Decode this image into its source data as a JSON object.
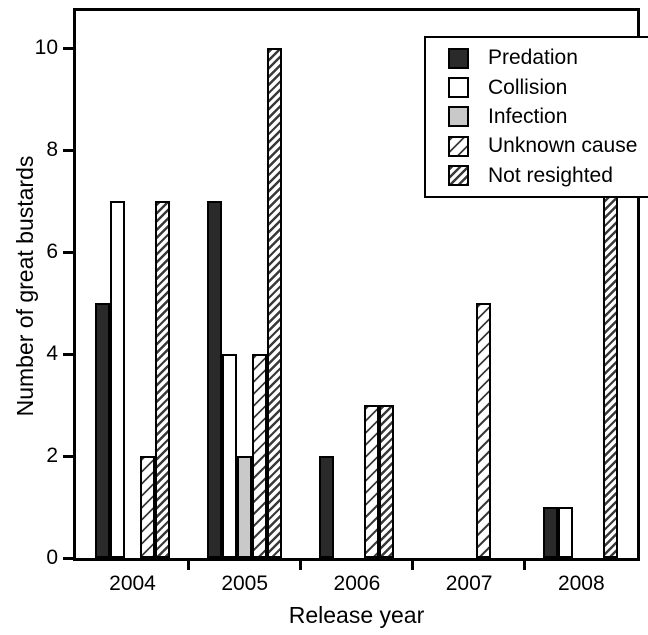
{
  "figure": {
    "background": "#ffffff",
    "frame_color": "#000000",
    "y_axis": {
      "label": "Number of great bustards",
      "tick_values": [
        0,
        2,
        4,
        6,
        8,
        10
      ]
    },
    "x_axis": {
      "label": "Release year",
      "categories": [
        "2004",
        "2005",
        "2006",
        "2007",
        "2008"
      ]
    },
    "legend": {
      "position": "upper-right-inside",
      "items": [
        {
          "label": "Predation",
          "style": "predation",
          "swatch": "solid-dark-square-icon"
        },
        {
          "label": "Collision",
          "style": "collision",
          "swatch": "white-square-icon"
        },
        {
          "label": "Infection",
          "style": "infection",
          "swatch": "gray-square-icon"
        },
        {
          "label": "Unknown cause",
          "style": "unknown",
          "swatch": "sparse-diagonal-hatch-square-icon"
        },
        {
          "label": "Not resighted",
          "style": "notresighted",
          "swatch": "dense-diagonal-hatch-square-icon"
        }
      ]
    }
  },
  "chart_data": {
    "type": "bar",
    "title": "",
    "categories": [
      "2004",
      "2005",
      "2006",
      "2007",
      "2008"
    ],
    "series": [
      {
        "name": "Predation",
        "style": "predation",
        "values": [
          5,
          7,
          2,
          0,
          1
        ]
      },
      {
        "name": "Collision",
        "style": "collision",
        "values": [
          7,
          4,
          0,
          0,
          1
        ]
      },
      {
        "name": "Infection",
        "style": "infection",
        "values": [
          0,
          2,
          0,
          0,
          0
        ]
      },
      {
        "name": "Unknown cause",
        "style": "unknown",
        "values": [
          2,
          4,
          3,
          5,
          0
        ]
      },
      {
        "name": "Not resighted",
        "style": "notresighted",
        "values": [
          7,
          10,
          3,
          0,
          9
        ]
      }
    ],
    "xlabel": "Release year",
    "ylabel": "Number of great bustards",
    "ylim": [
      0,
      10.7
    ],
    "yticks": [
      0,
      2,
      4,
      6,
      8,
      10
    ],
    "bar_outline_color": "#000000",
    "colors": {
      "predation_fill": "#2a2a2a",
      "collision_fill": "#ffffff",
      "infection_fill": "#c9c9c9",
      "hatch_line": "#3a3a3a",
      "hatch_background": "#ffffff"
    },
    "grid": false,
    "legend_position": "upper-right-inside"
  }
}
